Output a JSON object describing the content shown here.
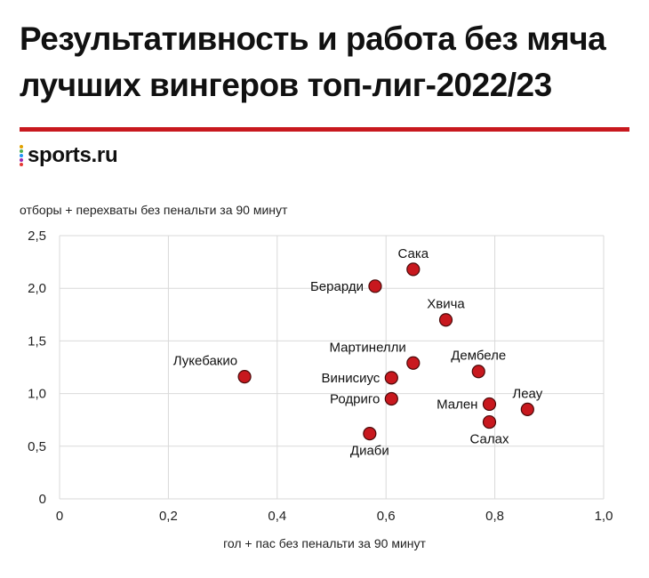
{
  "title_line1": "Результативность и работа без мяча",
  "title_line2": "лучших вингеров топ-лиг-2022/23",
  "brand": {
    "name": "sports.ru",
    "accent": "#c8181e",
    "dot_colors": [
      "#e0a100",
      "#4caf50",
      "#2196f3",
      "#9c27b0",
      "#e53935"
    ]
  },
  "chart_data": {
    "type": "scatter",
    "title": "Результативность и работа без мяча лучших вингеров топ-лиг-2022/23",
    "xlabel": "гол + пас без пенальти за 90 минут",
    "ylabel": "отборы + перехваты без пенальти за 90 минут",
    "xlim": [
      0,
      1.0
    ],
    "ylim": [
      0,
      2.5
    ],
    "x_ticks": [
      "0",
      "0,2",
      "0,4",
      "0,6",
      "0,8",
      "1,0"
    ],
    "y_ticks": [
      "0",
      "0,5",
      "1,0",
      "1,5",
      "2,0",
      "2,5"
    ],
    "grid": true,
    "marker_color": "#c8181e",
    "points": [
      {
        "name": "Сака",
        "x": 0.65,
        "y": 2.18,
        "label_pos": "top"
      },
      {
        "name": "Берарди",
        "x": 0.58,
        "y": 2.02,
        "label_pos": "left"
      },
      {
        "name": "Хвича",
        "x": 0.71,
        "y": 1.7,
        "label_pos": "top"
      },
      {
        "name": "Мартинелли",
        "x": 0.65,
        "y": 1.29,
        "label_pos": "top-left"
      },
      {
        "name": "Дембеле",
        "x": 0.77,
        "y": 1.21,
        "label_pos": "top"
      },
      {
        "name": "Лукебакио",
        "x": 0.34,
        "y": 1.16,
        "label_pos": "top-left"
      },
      {
        "name": "Винисиус",
        "x": 0.61,
        "y": 1.15,
        "label_pos": "left"
      },
      {
        "name": "Родриго",
        "x": 0.61,
        "y": 0.95,
        "label_pos": "left"
      },
      {
        "name": "Мален",
        "x": 0.79,
        "y": 0.9,
        "label_pos": "left"
      },
      {
        "name": "Леау",
        "x": 0.86,
        "y": 0.85,
        "label_pos": "top"
      },
      {
        "name": "Салах",
        "x": 0.79,
        "y": 0.73,
        "label_pos": "bottom"
      },
      {
        "name": "Диаби",
        "x": 0.57,
        "y": 0.62,
        "label_pos": "bottom"
      }
    ]
  }
}
